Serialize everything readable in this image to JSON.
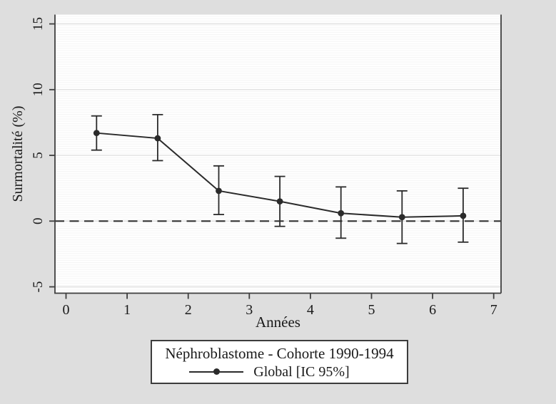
{
  "chart_data": {
    "type": "line",
    "subtype": "point-estimates-with-95ci-error-bars",
    "title": "",
    "xlabel": "Années",
    "ylabel": "Surmortalité (%)",
    "x": [
      0.5,
      1.5,
      2.5,
      3.5,
      4.5,
      5.5,
      6.5
    ],
    "series": [
      {
        "name": "Global [IC 95%]",
        "values": [
          6.7,
          6.3,
          2.3,
          1.5,
          0.6,
          0.3,
          0.4
        ],
        "ci_low": [
          5.4,
          4.6,
          0.5,
          -0.4,
          -1.3,
          -1.7,
          -1.6
        ],
        "ci_high": [
          8.0,
          8.1,
          4.2,
          3.4,
          2.6,
          2.3,
          2.5
        ]
      }
    ],
    "xticks": [
      0,
      1,
      2,
      3,
      4,
      5,
      6,
      7
    ],
    "yticks": [
      -5,
      0,
      5,
      10,
      15
    ],
    "xlim": [
      -0.17,
      7.12
    ],
    "ylim": [
      -5.5,
      15.7
    ],
    "grid": "horizontal-major",
    "reference_line": {
      "y": 0,
      "style": "dashed"
    },
    "legend_position": "bottom-outside"
  },
  "legend": {
    "title": "Néphroblastome - Cohorte 1990-1994",
    "series_label": "Global [IC 95%]"
  },
  "colors": {
    "background": "#dedede",
    "plot_background": "#ffffff",
    "plot_stripe": "#f5f5f5",
    "grid": "#e3e3e3",
    "axis": "#3f3f3f",
    "series_line": "#2b2b2b",
    "text": "#1a1a1a"
  }
}
